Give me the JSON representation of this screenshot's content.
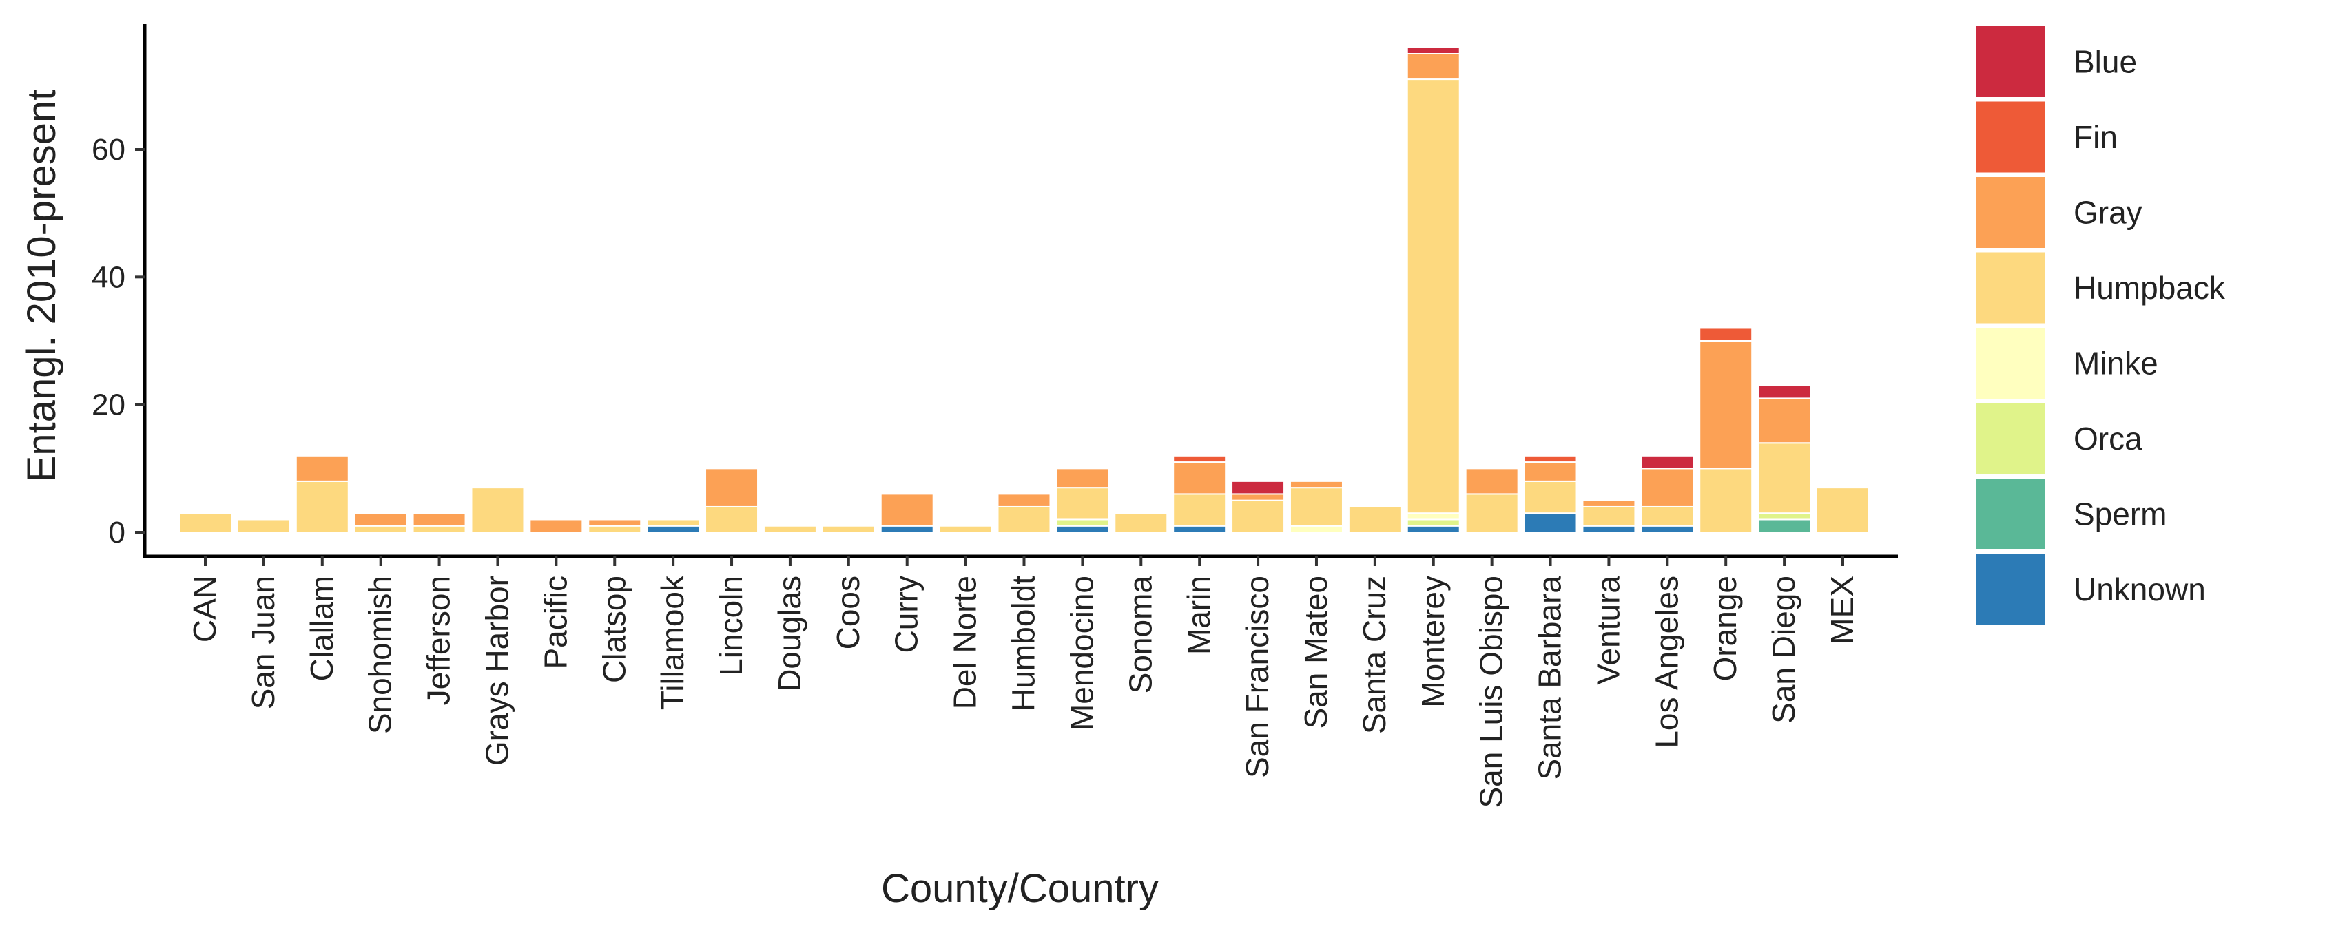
{
  "chart_data": {
    "type": "bar",
    "stacked": true,
    "title": "",
    "xlabel": "County/Country",
    "ylabel": "Entangl. 2010-present",
    "ylim": [
      0,
      79
    ],
    "yticks": [
      0,
      20,
      40,
      60
    ],
    "legend_position": "right",
    "categories": [
      "CAN",
      "San Juan",
      "Clallam",
      "Snohomish",
      "Jefferson",
      "Grays Harbor",
      "Pacific",
      "Clatsop",
      "Tillamook",
      "Lincoln",
      "Douglas",
      "Coos",
      "Curry",
      "Del Norte",
      "Humboldt",
      "Mendocino",
      "Sonoma",
      "Marin",
      "San Francisco",
      "San Mateo",
      "Santa Cruz",
      "Monterey",
      "San Luis Obispo",
      "Santa Barbara",
      "Ventura",
      "Los Angeles",
      "Orange",
      "San Diego",
      "MEX"
    ],
    "series": [
      {
        "name": "Unknown",
        "color": "#2C7BB6",
        "values": [
          0,
          0,
          0,
          0,
          0,
          0,
          0,
          0,
          1,
          0,
          0,
          0,
          1,
          0,
          0,
          1,
          0,
          1,
          0,
          0,
          0,
          1,
          0,
          3,
          1,
          1,
          0,
          0,
          0
        ]
      },
      {
        "name": "Sperm",
        "color": "#5AB897",
        "values": [
          0,
          0,
          0,
          0,
          0,
          0,
          0,
          0,
          0,
          0,
          0,
          0,
          0,
          0,
          0,
          0,
          0,
          0,
          0,
          0,
          0,
          0,
          0,
          0,
          0,
          0,
          0,
          2,
          0
        ]
      },
      {
        "name": "Orca",
        "color": "#E0F38A",
        "values": [
          0,
          0,
          0,
          0,
          0,
          0,
          0,
          0,
          0,
          0,
          0,
          0,
          0,
          0,
          0,
          1,
          0,
          0,
          0,
          0,
          0,
          1,
          0,
          0,
          0,
          0,
          0,
          1,
          0
        ]
      },
      {
        "name": "Minke",
        "color": "#FFFFBF",
        "values": [
          0,
          0,
          0,
          0,
          0,
          0,
          0,
          0,
          0,
          0,
          0,
          0,
          0,
          0,
          0,
          0,
          0,
          0,
          0,
          1,
          0,
          1,
          0,
          0,
          0,
          0,
          0,
          0,
          0
        ]
      },
      {
        "name": "Humpback",
        "color": "#FDD97F",
        "values": [
          3,
          2,
          8,
          1,
          1,
          7,
          0,
          1,
          1,
          4,
          1,
          1,
          0,
          1,
          4,
          5,
          3,
          5,
          5,
          6,
          4,
          68,
          6,
          5,
          3,
          3,
          10,
          11,
          7
        ]
      },
      {
        "name": "Gray",
        "color": "#FCA155",
        "values": [
          0,
          0,
          4,
          2,
          2,
          0,
          2,
          1,
          0,
          6,
          0,
          0,
          5,
          0,
          2,
          3,
          0,
          5,
          1,
          1,
          0,
          4,
          4,
          3,
          1,
          6,
          20,
          7,
          0
        ]
      },
      {
        "name": "Fin",
        "color": "#EE5A37",
        "values": [
          0,
          0,
          0,
          0,
          0,
          0,
          0,
          0,
          0,
          0,
          0,
          0,
          0,
          0,
          0,
          0,
          0,
          1,
          0,
          0,
          0,
          0,
          0,
          1,
          0,
          0,
          2,
          0,
          0
        ]
      },
      {
        "name": "Blue",
        "color": "#CC2A3F",
        "values": [
          0,
          0,
          0,
          0,
          0,
          0,
          0,
          0,
          0,
          0,
          0,
          0,
          0,
          0,
          0,
          0,
          0,
          0,
          2,
          0,
          0,
          1,
          0,
          0,
          0,
          2,
          0,
          2,
          0
        ]
      }
    ],
    "legend_order": [
      "Blue",
      "Fin",
      "Gray",
      "Humpback",
      "Minke",
      "Orca",
      "Sperm",
      "Unknown"
    ]
  }
}
